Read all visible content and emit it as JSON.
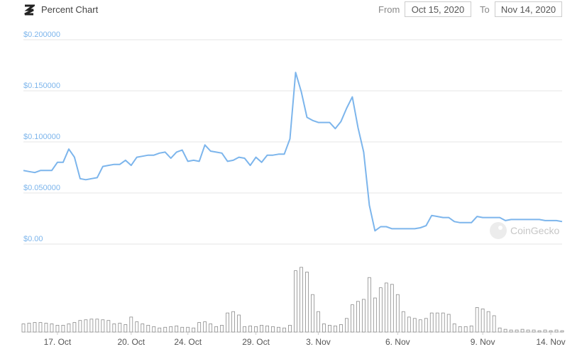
{
  "header": {
    "title": "Percent Chart",
    "from_label": "From",
    "from": "Oct 15, 2020",
    "to_label": "To",
    "to": "Nov 14, 2020"
  },
  "watermark": "CoinGecko",
  "chart_data": {
    "type": "line",
    "color": "#7cb5ec",
    "volume_color": "#8a8a8a",
    "grid": true,
    "categories": [
      null,
      null,
      null,
      null,
      null,
      null,
      "17. Oct",
      null,
      null,
      null,
      null,
      null,
      null,
      null,
      null,
      null,
      null,
      null,
      null,
      "20. Oct",
      null,
      null,
      null,
      null,
      null,
      null,
      null,
      null,
      null,
      "24. Oct",
      null,
      null,
      null,
      null,
      null,
      null,
      null,
      null,
      null,
      null,
      null,
      "29. Oct",
      null,
      null,
      null,
      null,
      null,
      null,
      null,
      null,
      null,
      null,
      "3. Nov",
      null,
      null,
      null,
      null,
      null,
      null,
      null,
      null,
      null,
      null,
      null,
      null,
      null,
      "6. Nov",
      null,
      null,
      null,
      null,
      null,
      null,
      null,
      null,
      null,
      null,
      null,
      null,
      null,
      null,
      "9. Nov",
      null,
      null,
      null,
      null,
      null,
      null,
      null,
      null,
      null,
      null,
      null,
      "14. Nov",
      null,
      null
    ],
    "values": [
      0.072,
      0.071,
      0.07,
      0.072,
      0.072,
      0.072,
      0.08,
      0.08,
      0.093,
      0.085,
      0.064,
      0.063,
      0.064,
      0.065,
      0.076,
      0.077,
      0.078,
      0.078,
      0.082,
      0.077,
      0.085,
      0.086,
      0.087,
      0.087,
      0.089,
      0.09,
      0.084,
      0.09,
      0.092,
      0.081,
      0.082,
      0.081,
      0.097,
      0.091,
      0.09,
      0.089,
      0.081,
      0.082,
      0.085,
      0.084,
      0.077,
      0.085,
      0.08,
      0.087,
      0.087,
      0.088,
      0.088,
      0.103,
      0.168,
      0.149,
      0.124,
      0.121,
      0.119,
      0.119,
      0.119,
      0.113,
      0.12,
      0.133,
      0.144,
      0.114,
      0.09,
      0.038,
      0.013,
      0.017,
      0.017,
      0.015,
      0.015,
      0.015,
      0.015,
      0.015,
      0.016,
      0.018,
      0.028,
      0.027,
      0.026,
      0.026,
      0.022,
      0.021,
      0.021,
      0.021,
      0.027,
      0.026,
      0.026,
      0.026,
      0.026,
      0.023,
      0.024,
      0.024,
      0.024,
      0.024,
      0.024,
      0.024,
      0.023,
      0.023,
      0.023,
      0.022
    ],
    "volume": [
      12,
      13,
      14,
      14,
      13,
      12,
      10,
      10,
      12,
      14,
      17,
      18,
      19,
      19,
      18,
      17,
      12,
      13,
      11,
      22,
      15,
      12,
      10,
      8,
      6,
      7,
      8,
      9,
      7,
      7,
      6,
      14,
      15,
      12,
      8,
      10,
      28,
      30,
      25,
      8,
      9,
      8,
      10,
      9,
      8,
      7,
      6,
      10,
      90,
      95,
      88,
      55,
      30,
      12,
      10,
      9,
      11,
      20,
      40,
      45,
      48,
      80,
      50,
      65,
      72,
      70,
      55,
      30,
      22,
      20,
      18,
      20,
      28,
      28,
      28,
      26,
      12,
      8,
      8,
      9,
      36,
      34,
      30,
      24,
      6,
      4,
      3,
      3,
      4,
      3,
      3,
      2,
      3,
      2,
      3,
      2
    ],
    "volume_ylim": [
      0,
      100
    ],
    "ylim": [
      0,
      0.2
    ],
    "yticks": [
      {
        "value": 0,
        "label": "$0.00"
      },
      {
        "value": 0.05,
        "label": "$0.050000"
      },
      {
        "value": 0.1,
        "label": "$0.100000"
      },
      {
        "value": 0.15,
        "label": "$0.150000"
      },
      {
        "value": 0.2,
        "label": "$0.200000"
      }
    ]
  }
}
